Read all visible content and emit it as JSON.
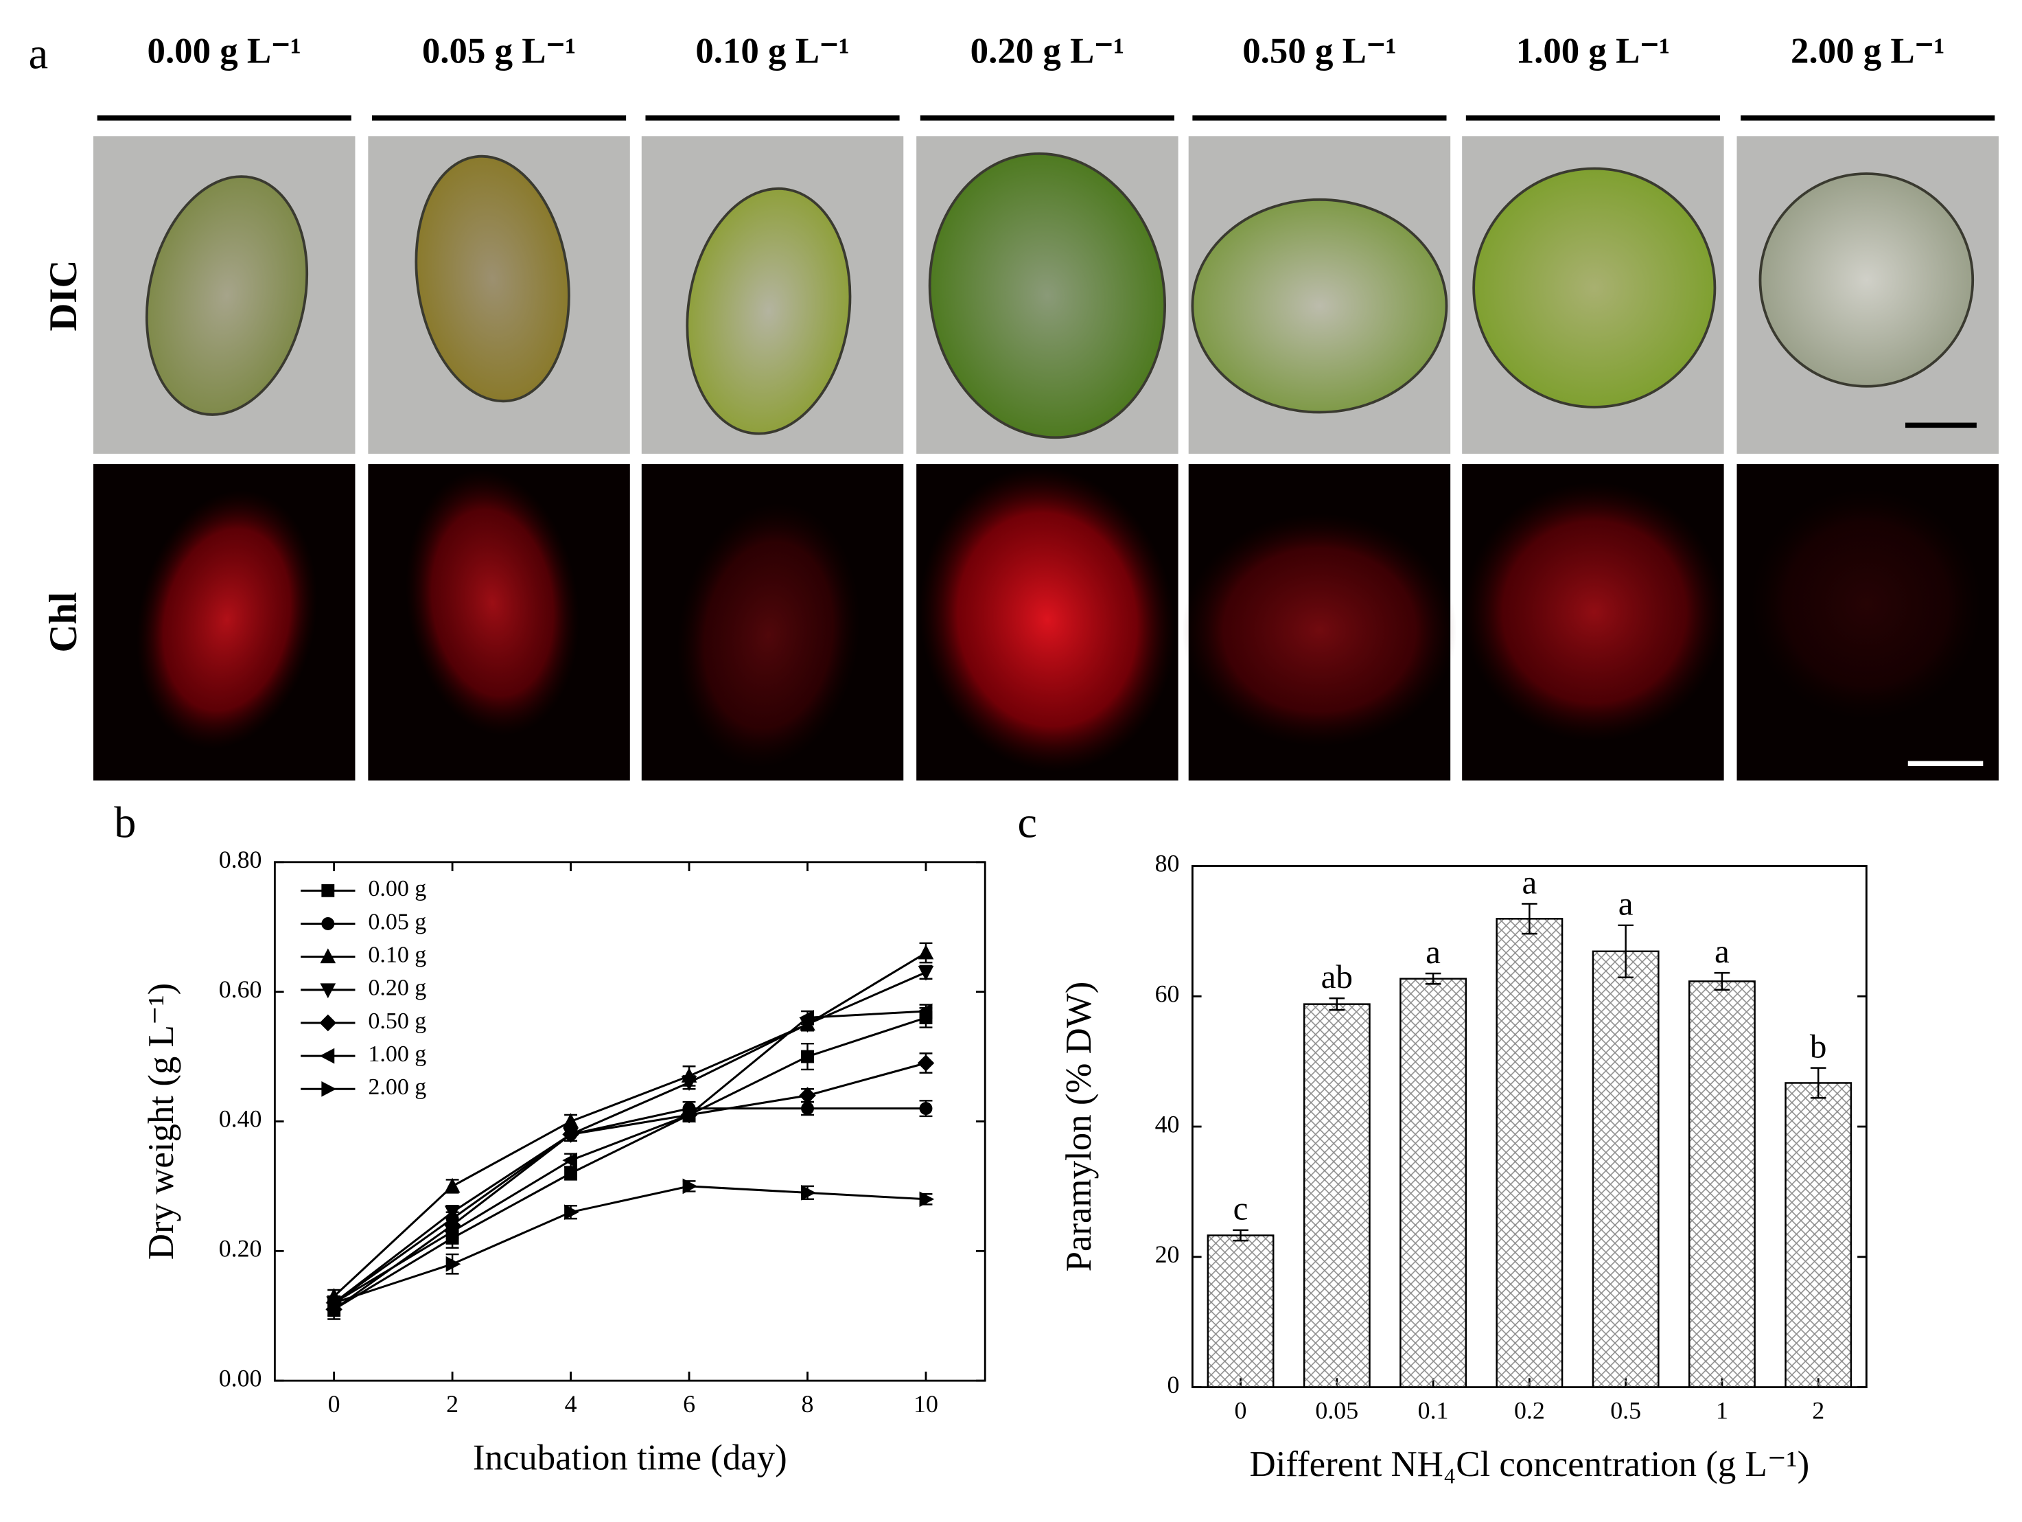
{
  "panel_a": {
    "label": "a",
    "columns": [
      "0.00 g L⁻¹",
      "0.05 g L⁻¹",
      "0.10 g L⁻¹",
      "0.20 g L⁻¹",
      "0.50 g L⁻¹",
      "1.00 g L⁻¹",
      "2.00 g L⁻¹"
    ],
    "rows": [
      "DIC",
      "Chl"
    ]
  },
  "chart_data": [
    {
      "type": "line",
      "panel": "b",
      "x_label": "Incubation time (day)",
      "y_label": "Dry weight (g L⁻¹)",
      "x": [
        0,
        2,
        4,
        6,
        8,
        10
      ],
      "xlim": [
        -1,
        11
      ],
      "xticks": [
        0,
        2,
        4,
        6,
        8,
        10
      ],
      "ylim": [
        0,
        0.8
      ],
      "yticks": [
        {
          "value": 0,
          "label": "0.00"
        },
        {
          "value": 0.2,
          "label": "0.20"
        },
        {
          "value": 0.4,
          "label": "0.40"
        },
        {
          "value": 0.6,
          "label": "0.60"
        },
        {
          "value": 0.8,
          "label": "0.80"
        }
      ],
      "grid": false,
      "legend": "upper left",
      "series": [
        {
          "name": "0.00 g",
          "color": "#000000",
          "marker": "square",
          "values": [
            0.11,
            0.22,
            0.32,
            0.41,
            0.5,
            0.56
          ],
          "errors": [
            0.015,
            0.015,
            0.01,
            0.01,
            0.02,
            0.015
          ]
        },
        {
          "name": "0.05 g",
          "color": "#000000",
          "marker": "circle",
          "values": [
            0.12,
            0.25,
            0.38,
            0.42,
            0.42,
            0.42
          ],
          "errors": [
            0.01,
            0.01,
            0.01,
            0.01,
            0.01,
            0.012
          ]
        },
        {
          "name": "0.10 g",
          "color": "#000000",
          "marker": "triangle-up",
          "values": [
            0.13,
            0.3,
            0.4,
            0.47,
            0.55,
            0.66
          ],
          "errors": [
            0.01,
            0.01,
            0.01,
            0.015,
            0.01,
            0.015
          ]
        },
        {
          "name": "0.20 g",
          "color": "#000000",
          "marker": "triangle-down",
          "values": [
            0.12,
            0.26,
            0.38,
            0.46,
            0.55,
            0.63
          ],
          "errors": [
            0.01,
            0.01,
            0.01,
            0.01,
            0.01,
            0.01
          ]
        },
        {
          "name": "0.50 g",
          "color": "#000000",
          "marker": "diamond",
          "values": [
            0.11,
            0.24,
            0.38,
            0.41,
            0.44,
            0.49
          ],
          "errors": [
            0.01,
            0.01,
            0.01,
            0.01,
            0.01,
            0.015
          ]
        },
        {
          "name": "1.00 g",
          "color": "#000000",
          "marker": "triangle-left",
          "values": [
            0.12,
            0.23,
            0.34,
            0.41,
            0.56,
            0.57
          ],
          "errors": [
            0.01,
            0.01,
            0.01,
            0.01,
            0.01,
            0.01
          ]
        },
        {
          "name": "2.00 g",
          "color": "#000000",
          "marker": "triangle-right",
          "values": [
            0.12,
            0.18,
            0.26,
            0.3,
            0.29,
            0.28
          ],
          "errors": [
            0.01,
            0.015,
            0.01,
            0.008,
            0.01,
            0.008
          ]
        }
      ]
    },
    {
      "type": "bar",
      "panel": "c",
      "x_label": "Different NH₄Cl concentration (g L⁻¹)",
      "y_label": "Paramylon (% DW)",
      "categories": [
        "0",
        "0.05",
        "0.1",
        "0.2",
        "0.5",
        "1",
        "2"
      ],
      "values": [
        23.3,
        58.8,
        62.7,
        71.9,
        66.9,
        62.3,
        46.7
      ],
      "errors": [
        0.8,
        0.9,
        0.8,
        2.3,
        4.0,
        1.3,
        2.3
      ],
      "annotations": [
        "c",
        "ab",
        "a",
        "a",
        "a",
        "a",
        "b"
      ],
      "ylim": [
        0,
        80
      ],
      "yticks": [
        0,
        20,
        40,
        60,
        80
      ],
      "grid": false,
      "color": "#8c8c8c"
    }
  ]
}
